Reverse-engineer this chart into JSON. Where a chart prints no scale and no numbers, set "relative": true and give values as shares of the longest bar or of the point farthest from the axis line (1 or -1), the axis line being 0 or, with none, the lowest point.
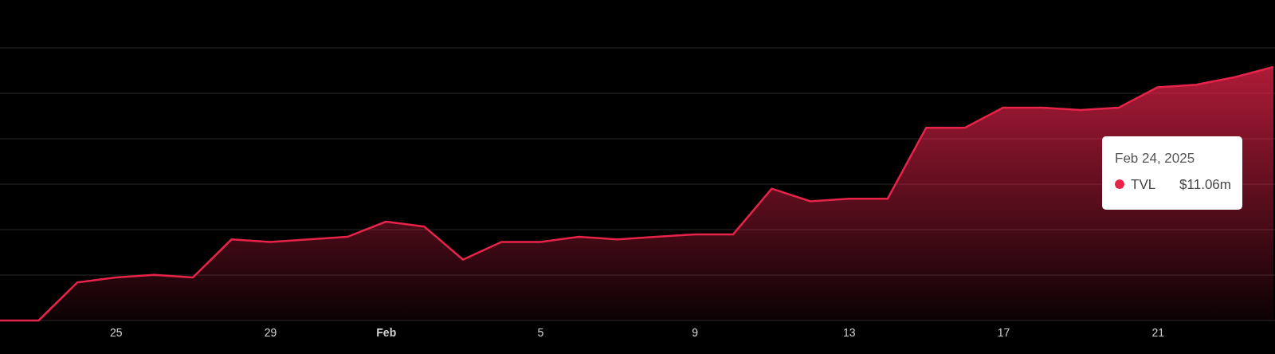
{
  "chart_data": {
    "type": "area",
    "relative": true,
    "x": [
      "2025-01-22",
      "2025-01-23",
      "2025-01-24",
      "2025-01-25",
      "2025-01-26",
      "2025-01-27",
      "2025-01-28",
      "2025-01-29",
      "2025-01-30",
      "2025-01-31",
      "2025-02-01",
      "2025-02-02",
      "2025-02-03",
      "2025-02-04",
      "2025-02-05",
      "2025-02-06",
      "2025-02-07",
      "2025-02-08",
      "2025-02-09",
      "2025-02-10",
      "2025-02-11",
      "2025-02-12",
      "2025-02-13",
      "2025-02-14",
      "2025-02-15",
      "2025-02-16",
      "2025-02-17",
      "2025-02-18",
      "2025-02-19",
      "2025-02-20",
      "2025-02-21",
      "2025-02-22",
      "2025-02-23",
      "2025-02-24"
    ],
    "series": [
      {
        "name": "TVL",
        "color": "#e8234a",
        "values": [
          0,
          0,
          0.15,
          0.17,
          0.18,
          0.17,
          0.32,
          0.31,
          0.32,
          0.33,
          0.39,
          0.37,
          0.24,
          0.31,
          0.31,
          0.33,
          0.32,
          0.33,
          0.34,
          0.34,
          0.52,
          0.47,
          0.48,
          0.48,
          0.76,
          0.76,
          0.84,
          0.84,
          0.83,
          0.84,
          0.92,
          0.93,
          0.96,
          1
        ]
      }
    ],
    "xlim": [
      "2025-01-22",
      "2025-02-24"
    ],
    "xticks": [
      {
        "value": "2025-01-25",
        "label": "25"
      },
      {
        "value": "2025-01-29",
        "label": "29"
      },
      {
        "value": "2025-02-01",
        "label": "Feb"
      },
      {
        "value": "2025-02-05",
        "label": "5"
      },
      {
        "value": "2025-02-09",
        "label": "9"
      },
      {
        "value": "2025-02-13",
        "label": "13"
      },
      {
        "value": "2025-02-17",
        "label": "17"
      },
      {
        "value": "2025-02-21",
        "label": "21"
      }
    ],
    "grid": true,
    "legend": "right",
    "annotations": [
      "Feb 24, 2025",
      "$11.06m"
    ]
  }
}
